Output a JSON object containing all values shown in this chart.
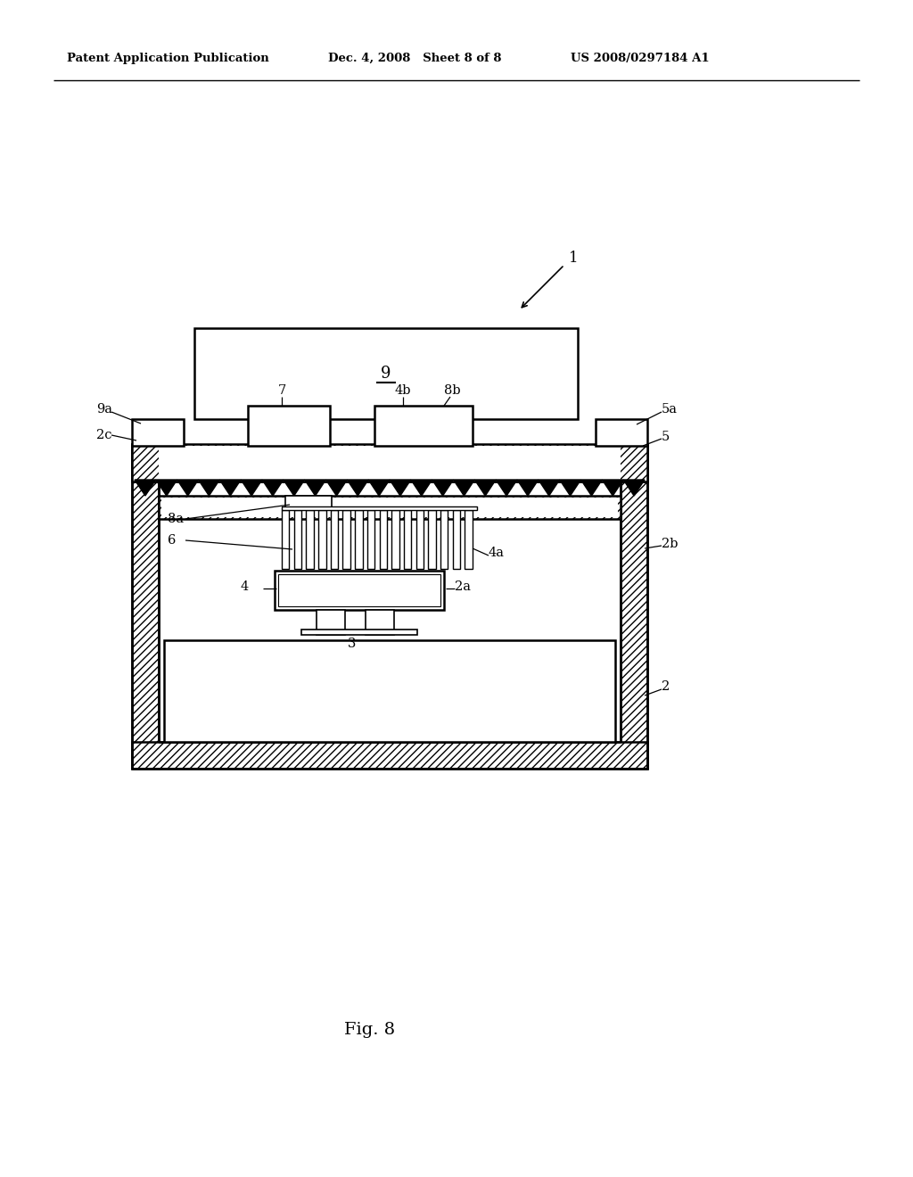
{
  "bg_color": "#ffffff",
  "line_color": "#000000",
  "header_left": "Patent Application Publication",
  "header_mid": "Dec. 4, 2008   Sheet 8 of 8",
  "header_right": "US 2008/0297184 A1",
  "fig_label": "Fig. 8",
  "label_1": "1",
  "label_2": "2",
  "label_2a": "2a",
  "label_2b": "2b",
  "label_2c": "2c",
  "label_3": "3",
  "label_4": "4",
  "label_4a": "4a",
  "label_4b": "4b",
  "label_5": "5",
  "label_5a": "5a",
  "label_6": "6",
  "label_7": "7",
  "label_8a": "8a",
  "label_8b": "8b",
  "label_9": "9",
  "label_9a": "9a"
}
